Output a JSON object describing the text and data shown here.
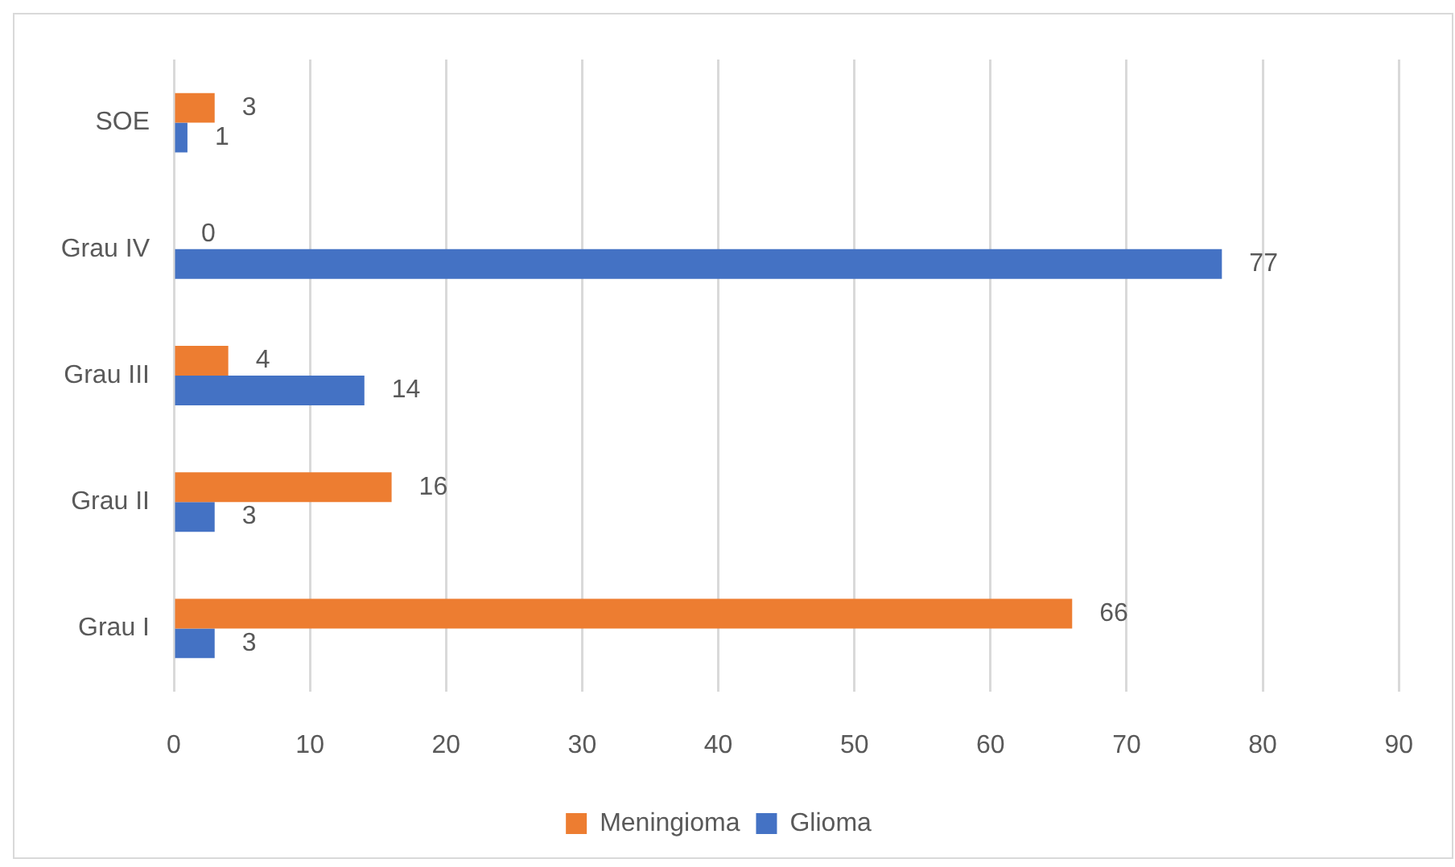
{
  "chart_data": {
    "type": "bar",
    "orientation": "horizontal",
    "categories": [
      "SOE",
      "Grau IV",
      "Grau III",
      "Grau II",
      "Grau I"
    ],
    "series": [
      {
        "name": "Meningioma",
        "color": "#ed7d31",
        "values": [
          3,
          0,
          4,
          16,
          66
        ]
      },
      {
        "name": "Glioma",
        "color": "#4472c4",
        "values": [
          1,
          77,
          14,
          3,
          3
        ]
      }
    ],
    "xlim": [
      0,
      90
    ],
    "xticks": [
      0,
      10,
      20,
      30,
      40,
      50,
      60,
      70,
      80,
      90
    ],
    "grid": "x",
    "legend": "bottom",
    "data_labels": true
  }
}
